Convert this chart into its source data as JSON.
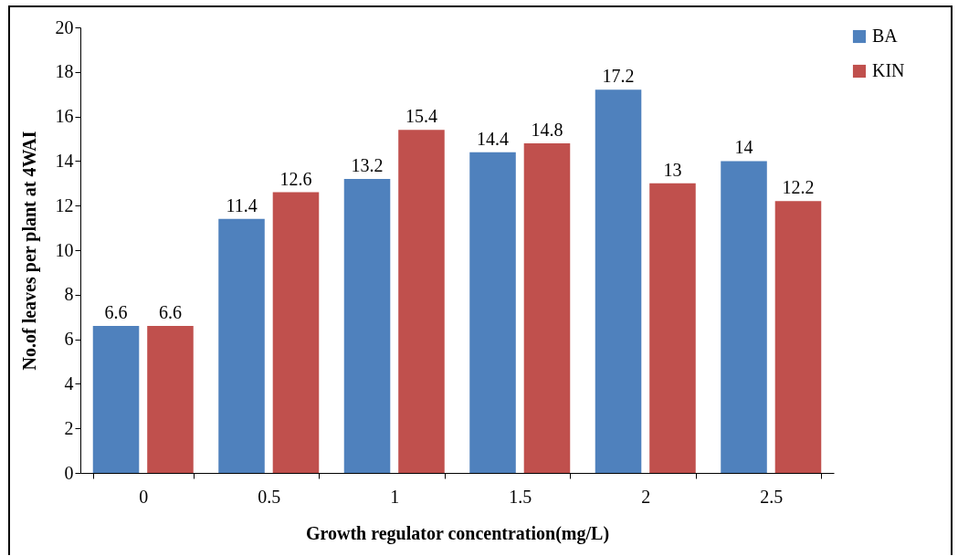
{
  "chart_data": {
    "type": "bar",
    "xlabel": "Growth regulator concentration(mg/L)",
    "ylabel": "No.of leaves per plant at 4WAI",
    "categories": [
      "0",
      "0.5",
      "1",
      "1.5",
      "2",
      "2.5"
    ],
    "series": [
      {
        "name": "BA",
        "color": "#4f81bd",
        "values": [
          6.6,
          11.4,
          13.2,
          14.4,
          17.2,
          14
        ]
      },
      {
        "name": "KIN",
        "color": "#c0504d",
        "values": [
          6.6,
          12.6,
          15.4,
          14.8,
          13,
          12.2
        ]
      }
    ],
    "ylim": [
      0,
      20
    ],
    "yticks": [
      0,
      2,
      4,
      6,
      8,
      10,
      12,
      14,
      16,
      18,
      20
    ],
    "grid": false,
    "legend": "right",
    "data_labels": true
  }
}
